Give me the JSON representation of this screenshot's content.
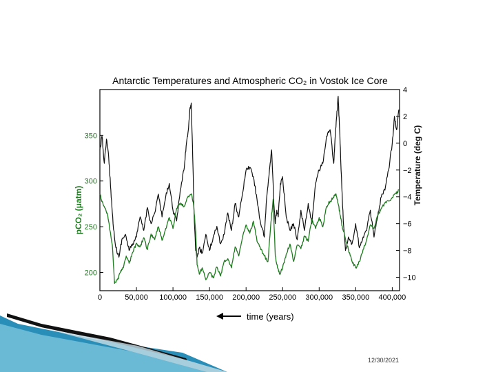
{
  "chart_data": {
    "type": "line",
    "title": "Antarctic Temperatures and Atmospheric CO₂ in Vostok Ice Core",
    "xlabel": "time (years)",
    "ylabel_left": "pCO₂ (μatm)",
    "ylabel_right": "Temperature (deg C)",
    "x_ticks": [
      0,
      50000,
      100000,
      150000,
      200000,
      250000,
      300000,
      350000,
      400000
    ],
    "x_tick_labels": [
      "0",
      "50,000",
      "100,000",
      "150,000",
      "200,000",
      "250,000",
      "300,000",
      "350,000",
      "400,000"
    ],
    "xlim": [
      0,
      410000
    ],
    "left_ticks": [
      200,
      250,
      300,
      350
    ],
    "left_tick_labels": [
      "200",
      "250",
      "300",
      "350"
    ],
    "left_ylim": [
      180,
      400
    ],
    "right_ticks": [
      4,
      2,
      0,
      -2,
      -4,
      -6,
      -8,
      -10
    ],
    "right_tick_labels": [
      "4",
      "2",
      "0",
      "−2",
      "−4",
      "−6",
      "−8",
      "−10"
    ],
    "right_ylim": [
      -11,
      4
    ],
    "series": [
      {
        "name": "Temperature",
        "axis": "right",
        "color": "#111111",
        "x": [
          0,
          3000,
          6000,
          9000,
          12000,
          15000,
          18000,
          22000,
          26000,
          30000,
          35000,
          40000,
          45000,
          50000,
          55000,
          60000,
          65000,
          70000,
          75000,
          80000,
          85000,
          90000,
          95000,
          100000,
          105000,
          110000,
          115000,
          118000,
          121000,
          123000,
          125000,
          127000,
          129000,
          131000,
          133000,
          136000,
          140000,
          145000,
          150000,
          155000,
          160000,
          165000,
          170000,
          175000,
          180000,
          185000,
          190000,
          195000,
          200000,
          205000,
          210000,
          215000,
          220000,
          225000,
          228000,
          232000,
          235000,
          238000,
          240000,
          242000,
          244000,
          247000,
          250000,
          255000,
          260000,
          265000,
          270000,
          275000,
          280000,
          285000,
          290000,
          295000,
          300000,
          305000,
          310000,
          315000,
          320000,
          322000,
          324000,
          326000,
          328000,
          330000,
          333000,
          336000,
          340000,
          345000,
          350000,
          355000,
          360000,
          365000,
          370000,
          375000,
          380000,
          385000,
          390000,
          395000,
          400000,
          403000,
          406000,
          409000
        ],
        "y": [
          -0.5,
          0.5,
          -1.5,
          0.3,
          -1.0,
          -3.5,
          -6.0,
          -7.8,
          -8.5,
          -7.2,
          -6.8,
          -8.0,
          -7.5,
          -7.0,
          -5.5,
          -6.5,
          -4.8,
          -6.0,
          -5.2,
          -3.8,
          -5.5,
          -4.0,
          -3.0,
          -5.0,
          -5.8,
          -3.5,
          -2.0,
          -0.2,
          1.0,
          2.5,
          3.0,
          -1.0,
          -5.5,
          -8.0,
          -8.5,
          -7.8,
          -8.2,
          -6.8,
          -8.0,
          -7.0,
          -6.2,
          -7.5,
          -6.8,
          -5.2,
          -6.5,
          -4.5,
          -5.5,
          -3.8,
          -2.0,
          -1.8,
          -2.5,
          -4.2,
          -6.0,
          -7.0,
          -4.2,
          -2.0,
          -0.5,
          -4.5,
          -6.0,
          -5.0,
          -5.5,
          -3.0,
          -2.5,
          -5.5,
          -6.5,
          -6.0,
          -7.2,
          -5.0,
          -6.5,
          -4.5,
          -6.0,
          -3.0,
          -2.0,
          -1.5,
          0.5,
          1.0,
          -1.5,
          0.5,
          2.0,
          3.5,
          1.0,
          -2.0,
          -5.8,
          -8.0,
          -7.0,
          -7.5,
          -6.0,
          -7.8,
          -7.0,
          -6.5,
          -5.0,
          -7.0,
          -5.5,
          -4.0,
          -3.5,
          -2.0,
          0.0,
          2.0,
          1.0,
          2.5
        ]
      },
      {
        "name": "CO₂",
        "axis": "left",
        "color": "#1e7a1e",
        "x": [
          0,
          3000,
          6000,
          10000,
          14000,
          17000,
          20000,
          24000,
          28000,
          32000,
          36000,
          40000,
          45000,
          50000,
          55000,
          60000,
          65000,
          70000,
          75000,
          80000,
          85000,
          90000,
          95000,
          100000,
          105000,
          110000,
          115000,
          120000,
          125000,
          128000,
          131000,
          133000,
          136000,
          140000,
          145000,
          150000,
          155000,
          160000,
          165000,
          170000,
          175000,
          180000,
          185000,
          190000,
          195000,
          200000,
          205000,
          210000,
          215000,
          220000,
          225000,
          230000,
          234000,
          237000,
          240000,
          243000,
          246000,
          250000,
          255000,
          260000,
          265000,
          270000,
          275000,
          280000,
          285000,
          290000,
          295000,
          300000,
          305000,
          310000,
          315000,
          320000,
          323000,
          326000,
          329000,
          332000,
          335000,
          340000,
          345000,
          350000,
          355000,
          360000,
          365000,
          370000,
          375000,
          380000,
          385000,
          390000,
          395000,
          400000,
          405000,
          409000
        ],
        "y": [
          285,
          278,
          272,
          265,
          245,
          230,
          188,
          192,
          200,
          205,
          218,
          210,
          222,
          232,
          228,
          238,
          225,
          242,
          236,
          250,
          235,
          248,
          260,
          248,
          270,
          276,
          272,
          282,
          286,
          276,
          245,
          208,
          198,
          205,
          192,
          200,
          194,
          206,
          196,
          212,
          215,
          205,
          228,
          218,
          238,
          252,
          243,
          256,
          234,
          225,
          218,
          212,
          255,
          280,
          218,
          205,
          198,
          205,
          220,
          231,
          212,
          230,
          226,
          240,
          234,
          258,
          248,
          260,
          250,
          272,
          278,
          282,
          286,
          275,
          262,
          248,
          240,
          225,
          212,
          205,
          212,
          225,
          236,
          252,
          248,
          262,
          270,
          276,
          278,
          282,
          286,
          290
        ]
      }
    ],
    "arrow": "left"
  },
  "slide": {
    "date": "12/30/2021"
  }
}
